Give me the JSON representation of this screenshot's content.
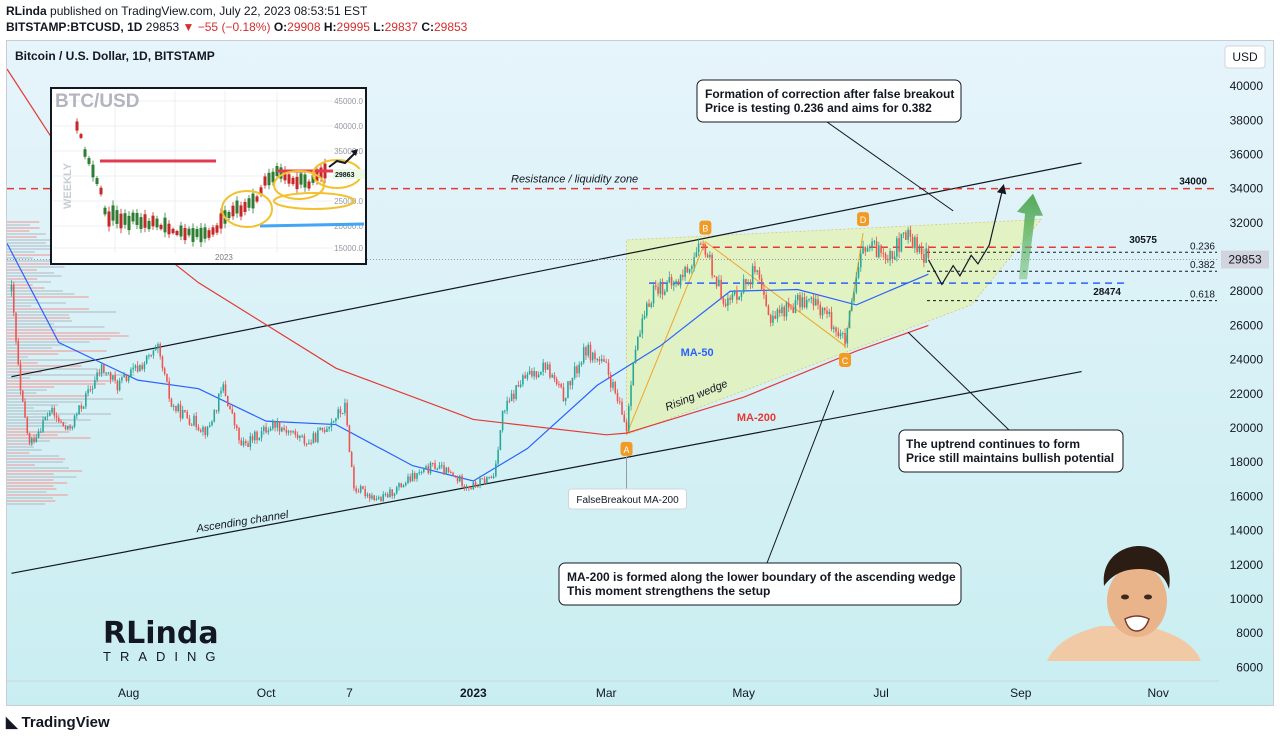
{
  "header": {
    "author": "RLinda",
    "published_text": "published on TradingView.com, July 22, 2023 08:53:51 EST",
    "symbol": "BITSTAMP:BTCUSD, 1D",
    "last": "29853",
    "change": "−55 (−0.18%)",
    "o_label": "O:",
    "o_value": "29908",
    "h_label": "H:",
    "h_value": "29995",
    "l_label": "L:",
    "l_value": "29837",
    "c_label": "C:",
    "c_value": "29853"
  },
  "chart_title": "Bitcoin / U.S. Dollar, 1D, BITSTAMP",
  "currency_button": "USD",
  "footer_brand": "TradingView",
  "colors": {
    "up": "#26a69a",
    "down": "#ef5350",
    "ma50": "#2962ff",
    "ma200": "#e53935",
    "resistance": "#e53935",
    "support": "#2962ff",
    "wedge_fill": "#e5f2a8",
    "bg_top": "#e4f3fb",
    "bg_bottom": "#cdeff3"
  },
  "annotations": {
    "resistance_zone": "Resistance / liquidity zone",
    "ascending_channel": "Ascending channel",
    "rising_wedge": "Rising wedge",
    "ma50": "MA-50",
    "ma200": "MA-200",
    "false_breakout": "FalseBreakout MA-200",
    "box1_line1": "Formation of correction after false breakout",
    "box1_line2": "Price is testing 0.236 and aims for 0.382",
    "box2_line1": "The uptrend continues to form",
    "box2_line2": "Price still maintains bullish potential",
    "box3_line1": "MA-200 is formed along the lower boundary of the ascending wedge",
    "box3_line2": "This moment strengthens the setup",
    "level_34000": "34000",
    "level_30575": "30575",
    "level_28474": "28474",
    "fib_0236": "0.236",
    "fib_0382": "0.382",
    "fib_0618": "0.618",
    "point_a": "A",
    "point_b": "B",
    "point_c": "C",
    "point_d": "D",
    "rlinda_logo_top": "RLinda",
    "rlinda_logo_bottom": "TRADING"
  },
  "inset": {
    "title": "BTC/USD",
    "timeframe": "WEEKLY",
    "year_label": "2023",
    "price_label": "29863",
    "y_ticks": [
      "45000.0",
      "40000.0",
      "35000.0",
      "30000.0",
      "25000.0",
      "20000.0",
      "15000.0"
    ]
  },
  "chart_data": {
    "type": "candlestick",
    "title": "Bitcoin / U.S. Dollar, 1D, BITSTAMP",
    "y_axis": {
      "ticks": [
        40000,
        38000,
        36000,
        34000,
        32000,
        30000,
        28000,
        26000,
        24000,
        22000,
        20000,
        18000,
        16000,
        14000,
        12000,
        10000,
        8000,
        6000
      ],
      "range": [
        5200,
        41000
      ],
      "current_price": 29853
    },
    "x_axis": {
      "ticks": [
        {
          "label": "Aug",
          "date": "2022-08-01"
        },
        {
          "label": "Oct",
          "date": "2022-10-01"
        },
        {
          "label": "7",
          "date": "2022-11-07"
        },
        {
          "label": "2023",
          "date": "2023-01-01"
        },
        {
          "label": "Mar",
          "date": "2023-03-01"
        },
        {
          "label": "May",
          "date": "2023-05-01"
        },
        {
          "label": "Jul",
          "date": "2023-07-01"
        },
        {
          "label": "Sep",
          "date": "2023-09-01"
        },
        {
          "label": "Nov",
          "date": "2023-11-01"
        }
      ],
      "range": [
        "2022-06-08",
        "2023-11-28"
      ]
    },
    "price_anchors": [
      {
        "date": "2022-06-10",
        "price": 28000
      },
      {
        "date": "2022-06-14",
        "price": 22000
      },
      {
        "date": "2022-06-18",
        "price": 19000
      },
      {
        "date": "2022-06-27",
        "price": 21000
      },
      {
        "date": "2022-07-05",
        "price": 19800
      },
      {
        "date": "2022-07-20",
        "price": 23500
      },
      {
        "date": "2022-07-27",
        "price": 22500
      },
      {
        "date": "2022-08-14",
        "price": 24500
      },
      {
        "date": "2022-08-20",
        "price": 21300
      },
      {
        "date": "2022-09-05",
        "price": 19800
      },
      {
        "date": "2022-09-12",
        "price": 22400
      },
      {
        "date": "2022-09-20",
        "price": 18900
      },
      {
        "date": "2022-10-05",
        "price": 20300
      },
      {
        "date": "2022-10-20",
        "price": 19100
      },
      {
        "date": "2022-11-05",
        "price": 21200
      },
      {
        "date": "2022-11-09",
        "price": 16500
      },
      {
        "date": "2022-11-21",
        "price": 15800
      },
      {
        "date": "2022-12-05",
        "price": 17100
      },
      {
        "date": "2022-12-15",
        "price": 17800
      },
      {
        "date": "2022-12-31",
        "price": 16550
      },
      {
        "date": "2023-01-10",
        "price": 17200
      },
      {
        "date": "2023-01-14",
        "price": 20800
      },
      {
        "date": "2023-01-22",
        "price": 22700
      },
      {
        "date": "2023-02-02",
        "price": 23700
      },
      {
        "date": "2023-02-10",
        "price": 21800
      },
      {
        "date": "2023-02-20",
        "price": 24600
      },
      {
        "date": "2023-03-01",
        "price": 23500
      },
      {
        "date": "2023-03-10",
        "price": 20000
      },
      {
        "date": "2023-03-13",
        "price": 24200
      },
      {
        "date": "2023-03-22",
        "price": 28200
      },
      {
        "date": "2023-04-01",
        "price": 28400
      },
      {
        "date": "2023-04-11",
        "price": 30300
      },
      {
        "date": "2023-04-14",
        "price": 30500
      },
      {
        "date": "2023-04-20",
        "price": 28200
      },
      {
        "date": "2023-04-24",
        "price": 27300
      },
      {
        "date": "2023-05-06",
        "price": 29200
      },
      {
        "date": "2023-05-12",
        "price": 26500
      },
      {
        "date": "2023-05-28",
        "price": 27500
      },
      {
        "date": "2023-06-05",
        "price": 27000
      },
      {
        "date": "2023-06-15",
        "price": 25000
      },
      {
        "date": "2023-06-20",
        "price": 28500
      },
      {
        "date": "2023-06-23",
        "price": 30500
      },
      {
        "date": "2023-07-06",
        "price": 30300
      },
      {
        "date": "2023-07-13",
        "price": 31300
      },
      {
        "date": "2023-07-22",
        "price": 29853
      }
    ],
    "series": [
      {
        "name": "MA-50",
        "points": [
          {
            "date": "2022-06-08",
            "price": 30800
          },
          {
            "date": "2022-07-01",
            "price": 25000
          },
          {
            "date": "2022-08-05",
            "price": 22800
          },
          {
            "date": "2022-09-01",
            "price": 22300
          },
          {
            "date": "2022-10-01",
            "price": 20400
          },
          {
            "date": "2022-11-01",
            "price": 20200
          },
          {
            "date": "2022-12-05",
            "price": 17800
          },
          {
            "date": "2023-01-01",
            "price": 16900
          },
          {
            "date": "2023-01-25",
            "price": 18800
          },
          {
            "date": "2023-02-25",
            "price": 22500
          },
          {
            "date": "2023-03-25",
            "price": 24800
          },
          {
            "date": "2023-04-25",
            "price": 28000
          },
          {
            "date": "2023-05-25",
            "price": 28100
          },
          {
            "date": "2023-06-20",
            "price": 27200
          },
          {
            "date": "2023-07-22",
            "price": 29000
          }
        ]
      },
      {
        "name": "MA-200",
        "points": [
          {
            "date": "2022-06-08",
            "price": 41000
          },
          {
            "date": "2022-07-15",
            "price": 33500
          },
          {
            "date": "2022-09-01",
            "price": 28500
          },
          {
            "date": "2022-11-01",
            "price": 23500
          },
          {
            "date": "2023-01-01",
            "price": 20500
          },
          {
            "date": "2023-03-01",
            "price": 19600
          },
          {
            "date": "2023-03-10",
            "price": 19700
          },
          {
            "date": "2023-05-01",
            "price": 21800
          },
          {
            "date": "2023-06-20",
            "price": 24500
          },
          {
            "date": "2023-07-22",
            "price": 26000
          }
        ]
      }
    ],
    "levels": [
      {
        "name": "Resistance / liquidity zone",
        "price": 34000
      },
      {
        "name": "30575",
        "price": 30575
      },
      {
        "name": "28474",
        "price": 28474
      },
      {
        "name": "0.236",
        "price": 30280
      },
      {
        "name": "0.382",
        "price": 29170
      },
      {
        "name": "0.618",
        "price": 27450
      }
    ],
    "channel": {
      "upper": [
        {
          "date": "2022-06-10",
          "price": 23000
        },
        {
          "date": "2023-09-28",
          "price": 35500
        }
      ],
      "lower": [
        {
          "date": "2022-06-10",
          "price": 11500
        },
        {
          "date": "2023-09-28",
          "price": 23300
        }
      ]
    },
    "wedge_points": [
      {
        "label": "A",
        "date": "2023-03-10",
        "price": 19600
      },
      {
        "label": "B",
        "date": "2023-04-14",
        "price": 30900
      },
      {
        "label": "C",
        "date": "2023-06-15",
        "price": 24800
      },
      {
        "label": "D",
        "date": "2023-06-23",
        "price": 31400
      }
    ]
  }
}
